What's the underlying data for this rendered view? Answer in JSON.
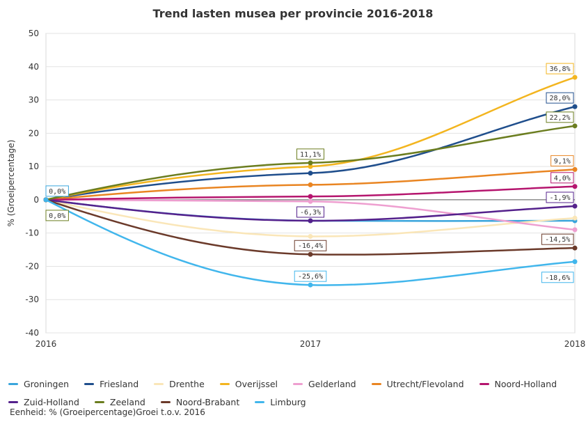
{
  "chart_data": {
    "type": "line",
    "title": "Trend lasten musea per provincie 2016-2018",
    "ylabel": "% (Groeipercentage)",
    "xlabel": "",
    "x": [
      "2016",
      "2017",
      "2018"
    ],
    "ylim": [
      -40,
      50
    ],
    "yticks": [
      -40,
      -30,
      -20,
      -10,
      0,
      10,
      20,
      30,
      40,
      50
    ],
    "grid": "horizontal",
    "legend_position": "bottom",
    "series": [
      {
        "name": "Groningen",
        "color": "#3aa5dc",
        "values": [
          0,
          -6.3,
          -6.3
        ]
      },
      {
        "name": "Friesland",
        "color": "#1f4e8c",
        "values": [
          0,
          8.0,
          28.0
        ]
      },
      {
        "name": "Drenthe",
        "color": "#fae6b8",
        "values": [
          0,
          -11.0,
          -5.5
        ]
      },
      {
        "name": "Overijssel",
        "color": "#f3b51f",
        "values": [
          0,
          10.0,
          36.8
        ]
      },
      {
        "name": "Gelderland",
        "color": "#ee9fd0",
        "values": [
          0,
          -0.5,
          -9.0
        ]
      },
      {
        "name": "Utrecht/Flevoland",
        "color": "#e98522",
        "values": [
          0,
          4.5,
          9.1
        ]
      },
      {
        "name": "Noord-Holland",
        "color": "#b5156e",
        "values": [
          0,
          1.0,
          4.0
        ]
      },
      {
        "name": "Zuid-Holland",
        "color": "#54218c",
        "values": [
          0,
          -6.3,
          -1.9
        ]
      },
      {
        "name": "Zeeland",
        "color": "#6b7d1f",
        "values": [
          0,
          11.1,
          22.2
        ]
      },
      {
        "name": "Noord-Brabant",
        "color": "#6b3a2a",
        "values": [
          0,
          -16.4,
          -14.5
        ]
      },
      {
        "name": "Limburg",
        "color": "#41b6ec",
        "values": [
          0,
          -25.6,
          -18.6
        ]
      }
    ],
    "annotations": [
      {
        "x": "2016",
        "y": 0,
        "text": "0,0%",
        "color": "#3aa5dc",
        "side": "above"
      },
      {
        "x": "2016",
        "y": 0,
        "text": "0,0%",
        "color": "#6b7d1f",
        "side": "below"
      },
      {
        "x": "2017",
        "y": 11.1,
        "text": "11,1%",
        "color": "#6b7d1f",
        "side": "above"
      },
      {
        "x": "2017",
        "y": -6.3,
        "text": "-6,3%",
        "color": "#54218c",
        "side": "above"
      },
      {
        "x": "2017",
        "y": -16.4,
        "text": "-16,4%",
        "color": "#6b3a2a",
        "side": "above"
      },
      {
        "x": "2017",
        "y": -25.6,
        "text": "-25,6%",
        "color": "#41b6ec",
        "side": "above"
      },
      {
        "x": "2018",
        "y": 36.8,
        "text": "36,8%",
        "color": "#f3b51f",
        "side": "above"
      },
      {
        "x": "2018",
        "y": 28.0,
        "text": "28,0%",
        "color": "#1f4e8c",
        "side": "above"
      },
      {
        "x": "2018",
        "y": 22.2,
        "text": "22,2%",
        "color": "#6b7d1f",
        "side": "above"
      },
      {
        "x": "2018",
        "y": 9.1,
        "text": "9,1%",
        "color": "#e98522",
        "side": "above"
      },
      {
        "x": "2018",
        "y": 4.0,
        "text": "4,0%",
        "color": "#b5156e",
        "side": "above"
      },
      {
        "x": "2018",
        "y": -1.9,
        "text": "-1,9%",
        "color": "#54218c",
        "side": "above"
      },
      {
        "x": "2018",
        "y": -14.5,
        "text": "-14,5%",
        "color": "#6b3a2a",
        "side": "above"
      },
      {
        "x": "2018",
        "y": -18.6,
        "text": "-18,6%",
        "color": "#41b6ec",
        "side": "below"
      }
    ]
  },
  "footnote": "Eenheid: % (Groeipercentage)Groei t.o.v. 2016"
}
